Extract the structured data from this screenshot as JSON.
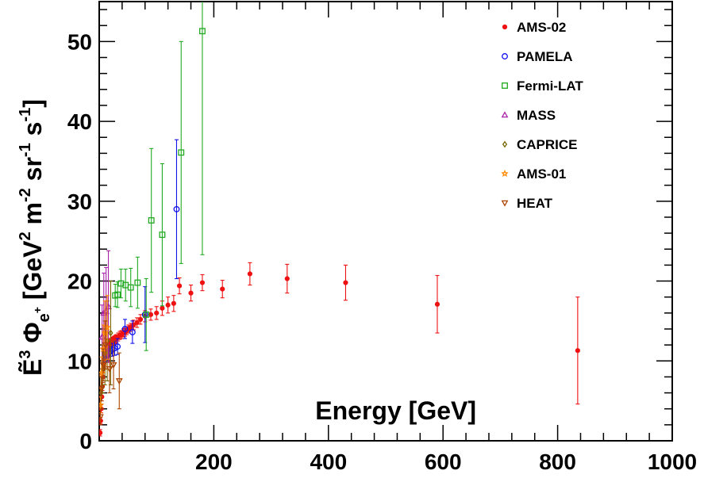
{
  "chart_data": {
    "type": "scatter",
    "xlabel": "Energy [GeV]",
    "ylabel": {
      "main": "Ẽ",
      "sup3": "3",
      "phi": " Φ",
      "sub_e": "e",
      "sup_plus": "+",
      "units_a": " [GeV",
      "sup2": "2",
      "units_b": " m",
      "supm2": "-2",
      "units_c": " sr",
      "supm1a": "-1",
      "units_d": " s",
      "supm1b": "-1",
      "units_e": "]"
    },
    "xlim": [
      0,
      1000
    ],
    "ylim": [
      0,
      55
    ],
    "xticks": [
      200,
      400,
      600,
      800,
      1000
    ],
    "yticks": [
      0,
      10,
      20,
      30,
      40,
      50
    ],
    "x_tick_labels": [
      "200",
      "400",
      "600",
      "800",
      "1000"
    ],
    "y_tick_labels": [
      "0",
      "10",
      "20",
      "30",
      "40",
      "50"
    ],
    "legend_placement": "top-right",
    "grid": false,
    "series": [
      {
        "name": "AMS-02",
        "marker": "dot",
        "color": "#ee1111",
        "points": [
          [
            1.5,
            1.0,
            0.4
          ],
          [
            2.5,
            2.5,
            0.4
          ],
          [
            3.5,
            4.0,
            0.5
          ],
          [
            4.5,
            5.5,
            0.5
          ],
          [
            5.5,
            6.8,
            0.5
          ],
          [
            6.5,
            8.0,
            0.5
          ],
          [
            7.5,
            9.0,
            0.5
          ],
          [
            8.5,
            9.8,
            0.5
          ],
          [
            9.5,
            10.5,
            0.5
          ],
          [
            10.5,
            11.0,
            0.5
          ],
          [
            12,
            11.5,
            0.5
          ],
          [
            14,
            11.8,
            0.5
          ],
          [
            16,
            12.0,
            0.5
          ],
          [
            18,
            12.2,
            0.5
          ],
          [
            20,
            12.3,
            0.5
          ],
          [
            22,
            12.4,
            0.5
          ],
          [
            24,
            12.5,
            0.5
          ],
          [
            26,
            12.6,
            0.5
          ],
          [
            28,
            12.7,
            0.5
          ],
          [
            30,
            12.8,
            0.5
          ],
          [
            33,
            13.0,
            0.5
          ],
          [
            36,
            13.2,
            0.5
          ],
          [
            39,
            13.3,
            0.5
          ],
          [
            42,
            13.5,
            0.5
          ],
          [
            45,
            13.6,
            0.5
          ],
          [
            48,
            13.8,
            0.5
          ],
          [
            51,
            14.0,
            0.5
          ],
          [
            55,
            14.2,
            0.5
          ],
          [
            60,
            14.5,
            0.6
          ],
          [
            66,
            14.8,
            0.6
          ],
          [
            72,
            15.2,
            0.6
          ],
          [
            80,
            15.6,
            0.7
          ],
          [
            90,
            15.8,
            0.7
          ],
          [
            100,
            16.0,
            0.8
          ],
          [
            110,
            16.6,
            0.9
          ],
          [
            120,
            17.0,
            1.0
          ],
          [
            130,
            17.2,
            1.0
          ],
          [
            140,
            19.4,
            1.0
          ],
          [
            160,
            18.5,
            1.0
          ],
          [
            180,
            19.8,
            1.0
          ],
          [
            215,
            19.0,
            1.1
          ],
          [
            263,
            20.9,
            1.4
          ],
          [
            328,
            20.3,
            1.8
          ],
          [
            430,
            19.8,
            2.2
          ],
          [
            590,
            17.1,
            3.6
          ],
          [
            835,
            11.3,
            6.7
          ]
        ]
      },
      {
        "name": "PAMELA",
        "marker": "open-circle",
        "color": "#1111ee",
        "points": [
          [
            10,
            10.2,
            0.4
          ],
          [
            12,
            10.6,
            0.4
          ],
          [
            14,
            10.8,
            0.4
          ],
          [
            16,
            11.0,
            0.5
          ],
          [
            18,
            11.1,
            0.5
          ],
          [
            20,
            11.2,
            0.6
          ],
          [
            23,
            11.4,
            0.8
          ],
          [
            27,
            11.6,
            0.9
          ],
          [
            32,
            11.8,
            1.0
          ],
          [
            45,
            14.0,
            1.2
          ],
          [
            58,
            13.6,
            1.4
          ],
          [
            80,
            15.8,
            3.5
          ],
          [
            135,
            29.0,
            8.7
          ]
        ]
      },
      {
        "name": "Fermi-LAT",
        "marker": "open-square",
        "color": "#22aa22",
        "points": [
          [
            28,
            18.2,
            1.4
          ],
          [
            32,
            18.3,
            1.6
          ],
          [
            38,
            19.7,
            1.8
          ],
          [
            46,
            19.5,
            2.0
          ],
          [
            55,
            19.2,
            2.4
          ],
          [
            67,
            19.8,
            3.2
          ],
          [
            82,
            15.8,
            4.5
          ],
          [
            91,
            27.6,
            9.0
          ],
          [
            110,
            25.8,
            8.9
          ],
          [
            143,
            36.1,
            13.9
          ],
          [
            180,
            51.3,
            28.0
          ]
        ]
      },
      {
        "name": "MASS",
        "marker": "open-triangle-up",
        "color": "#aa22aa",
        "points": [
          [
            5,
            13.0,
            4.0
          ],
          [
            8,
            16.0,
            5.0
          ],
          [
            12,
            16.2,
            5.5
          ],
          [
            16,
            16.8,
            7.0
          ]
        ]
      },
      {
        "name": "CAPRICE",
        "marker": "open-diamond",
        "color": "#776600",
        "points": [
          [
            3,
            6.0,
            2.0
          ],
          [
            6,
            9.0,
            3.0
          ],
          [
            10,
            11.0,
            4.0
          ],
          [
            14,
            12.5,
            5.0
          ],
          [
            20,
            13.5,
            6.5
          ]
        ]
      },
      {
        "name": "AMS-01",
        "marker": "open-star",
        "color": "#ff8800",
        "points": [
          [
            2,
            4.5,
            1.0
          ],
          [
            4,
            8.5,
            2.0
          ],
          [
            7,
            11.5,
            3.0
          ],
          [
            10,
            13.5,
            4.0
          ],
          [
            14,
            14.2,
            4.0
          ]
        ]
      },
      {
        "name": "HEAT",
        "marker": "open-triangle-down",
        "color": "#aa4400",
        "points": [
          [
            2,
            3.0,
            1.0
          ],
          [
            4,
            6.5,
            1.5
          ],
          [
            7,
            9.5,
            2.0
          ],
          [
            11,
            12.0,
            3.0
          ],
          [
            18,
            9.0,
            3.0
          ],
          [
            25,
            9.5,
            3.0
          ],
          [
            35,
            7.5,
            3.5
          ]
        ]
      }
    ]
  }
}
